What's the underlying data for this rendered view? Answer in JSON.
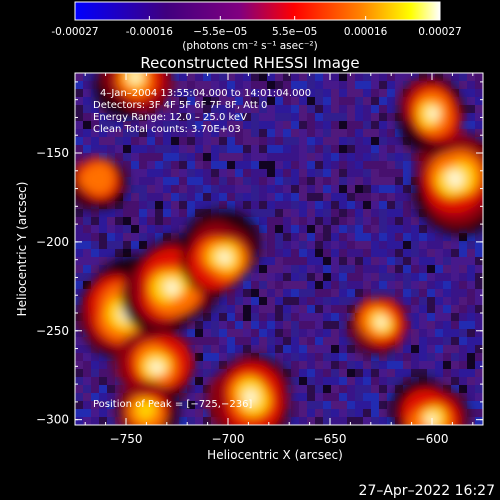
{
  "colorbar": {
    "tick_labels": [
      "-0.00027",
      "-0.00016",
      "−5.5e−05",
      "5.5e−05",
      "0.00016",
      "0.00027"
    ],
    "values": [
      -0.00027,
      -0.00016,
      -5.5e-05,
      5.5e-05,
      0.00016,
      0.00027
    ],
    "units": "(photons cm⁻² s⁻¹ asec⁻²)",
    "colors": [
      "#0000ff",
      "#40007f",
      "#800080",
      "#ff0000",
      "#ff8000",
      "#ffff00",
      "#ffffff"
    ]
  },
  "image": {
    "title": "Reconstructed RHESSI Image",
    "annotations": {
      "time": "4–Jan–2004 13:55:04.000 to 14:01:04.000",
      "detectors": "Detectors: 3F 4F 5F 6F 7F 8F, Att 0",
      "energy": "Energy Range: 12.0 – 25.0 keV",
      "clean": "Clean     Total counts: 3.70E+03",
      "peak": "Position of Peak = [−725,−236]"
    },
    "x_axis": {
      "label": "Heliocentric X (arcsec)",
      "ticks": [
        "−750",
        "−700",
        "−650",
        "−600"
      ],
      "tick_values": [
        -750,
        -700,
        -650,
        -600
      ],
      "range": [
        -775,
        -575
      ]
    },
    "y_axis": {
      "label": "Heliocentric Y (arcsec)",
      "ticks": [
        "−150",
        "−200",
        "−250",
        "−300"
      ],
      "tick_values": [
        -150,
        -200,
        -250,
        -300
      ],
      "range": [
        -303,
        -105
      ]
    },
    "bright_sources": [
      {
        "x": -750,
        "y": -240,
        "level": 1.0
      },
      {
        "x": -728,
        "y": -226,
        "level": 0.95
      },
      {
        "x": -735,
        "y": -270,
        "level": 0.8
      },
      {
        "x": -702,
        "y": -208,
        "level": 0.85
      },
      {
        "x": -588,
        "y": -165,
        "level": 1.0
      },
      {
        "x": -600,
        "y": -128,
        "level": 0.75
      },
      {
        "x": -688,
        "y": -287,
        "level": 0.9
      },
      {
        "x": -745,
        "y": -108,
        "level": 0.7
      },
      {
        "x": -765,
        "y": -165,
        "level": 0.6
      },
      {
        "x": -625,
        "y": -245,
        "level": 0.7
      },
      {
        "x": -600,
        "y": -300,
        "level": 0.75
      },
      {
        "x": -740,
        "y": -295,
        "level": 0.65
      }
    ]
  },
  "footer": {
    "timestamp": "27–Apr–2022 16:27"
  }
}
